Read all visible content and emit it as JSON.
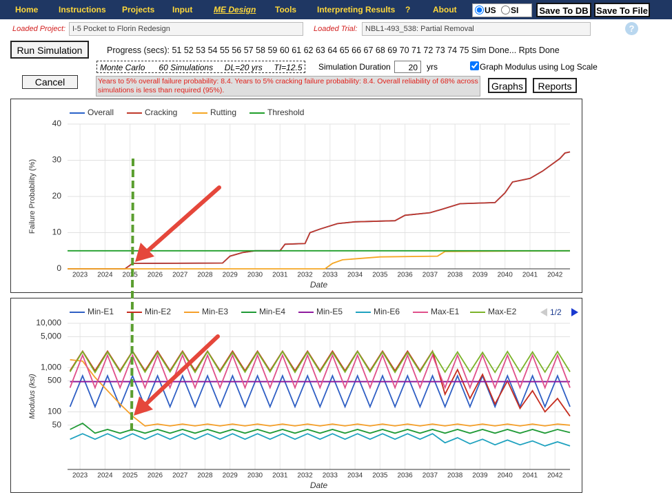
{
  "nav": {
    "items": [
      "Home",
      "Instructions",
      "Projects",
      "Input",
      "ME Design",
      "Tools",
      "Interpreting Results",
      "?",
      "About"
    ],
    "active": 4
  },
  "units": {
    "options": [
      "US",
      "SI"
    ],
    "selected": 0
  },
  "buttons": {
    "save_db": "Save To DB",
    "save_file": "Save To File",
    "run": "Run Simulation",
    "cancel": "Cancel",
    "graphs": "Graphs",
    "reports": "Reports"
  },
  "project": {
    "label": "Loaded Project:",
    "value": "I-5 Pocket to Florin Redesign"
  },
  "trial": {
    "label": "Loaded Trial:",
    "value": "NBL1-493_538: Partial Removal"
  },
  "help": "?",
  "progress": "Progress (secs): 51 52 53 54 55 56 57 58 59 60 61 62 63 64 65 66 67 68 69 70 71 72 73 74 75 Sim Done... Rpts Done",
  "monte_carlo": [
    "Monte Carlo",
    "60 Simulations",
    "DL=20 yrs",
    "TI=12.5"
  ],
  "duration": {
    "label": "Simulation Duration",
    "value": "20",
    "unit": "yrs"
  },
  "log_scale": {
    "label": "Graph Modulus using Log Scale",
    "checked": true
  },
  "message": "Years to 5% overall failure probability: 8.4. Years to 5% cracking failure probability: 8.4. Overall reliability of 68% across simulations is less than required (95%).",
  "chart_data": [
    {
      "type": "line",
      "ylabel": "Failure Probability (%)",
      "xlabel": "Date",
      "xlim": [
        2022.5,
        2042.6
      ],
      "xticks": [
        2023,
        2024,
        2025,
        2026,
        2027,
        2028,
        2029,
        2030,
        2031,
        2032,
        2033,
        2034,
        2035,
        2036,
        2037,
        2038,
        2039,
        2040,
        2041,
        2042
      ],
      "ylim": [
        0,
        40
      ],
      "yticks": [
        0,
        10,
        20,
        30,
        40
      ],
      "grid": true,
      "legend": "top-left",
      "series": [
        {
          "name": "Overall",
          "color": "#2a62c9",
          "x": [
            2022.5,
            2024.8,
            2025.1,
            2028.7,
            2029.0,
            2029.5,
            2030.0,
            2031.0,
            2031.2,
            2032.0,
            2032.2,
            2032.6,
            2033.3,
            2034.0,
            2035.6,
            2036.0,
            2037.0,
            2037.5,
            2038.2,
            2039.6,
            2040.0,
            2040.3,
            2041.0,
            2041.5,
            2042.2,
            2042.4,
            2042.6
          ],
          "values": [
            0,
            0,
            1.5,
            1.6,
            3.5,
            4.5,
            5,
            5,
            6.8,
            7,
            10,
            11,
            12.5,
            13,
            13.3,
            14.8,
            15.5,
            16.5,
            18,
            18.3,
            21,
            24,
            25,
            27,
            30.5,
            32,
            32.3
          ]
        },
        {
          "name": "Cracking",
          "color": "#c0392b",
          "x": [
            2022.5,
            2024.8,
            2025.1,
            2028.7,
            2029.0,
            2029.5,
            2030.0,
            2031.0,
            2031.2,
            2032.0,
            2032.2,
            2032.6,
            2033.3,
            2034.0,
            2035.6,
            2036.0,
            2037.0,
            2037.5,
            2038.2,
            2039.6,
            2040.0,
            2040.3,
            2041.0,
            2041.5,
            2042.2,
            2042.4,
            2042.6
          ],
          "values": [
            0,
            0,
            1.5,
            1.6,
            3.5,
            4.5,
            5,
            5,
            6.8,
            7,
            10,
            11,
            12.5,
            13,
            13.3,
            14.8,
            15.5,
            16.5,
            18,
            18.3,
            21,
            24,
            25,
            27,
            30.5,
            32,
            32.3
          ]
        },
        {
          "name": "Rutting",
          "color": "#f5a623",
          "x": [
            2022.5,
            2032.8,
            2033.1,
            2033.5,
            2035.0,
            2037.3,
            2037.6,
            2042.6
          ],
          "values": [
            0,
            0,
            1.5,
            2.5,
            3.3,
            3.5,
            4.8,
            5
          ]
        },
        {
          "name": "Threshold",
          "color": "#1f9e2a",
          "x": [
            2022.5,
            2042.6
          ],
          "values": [
            5,
            5
          ]
        }
      ]
    },
    {
      "type": "line",
      "ylabel": "Modulus (ksi)",
      "xlabel": "Date",
      "log_scale": true,
      "legend_page": "1/2",
      "xlim": [
        2022.5,
        2042.6
      ],
      "xticks": [
        2023,
        2024,
        2025,
        2026,
        2027,
        2028,
        2029,
        2030,
        2031,
        2032,
        2033,
        2034,
        2035,
        2036,
        2037,
        2038,
        2039,
        2040,
        2041,
        2042
      ],
      "ylim": [
        5,
        10000
      ],
      "yticks": [
        50,
        100,
        500,
        {
          "value": 1000,
          "label": "1,000"
        },
        {
          "value": 5000,
          "label": "5,000"
        },
        {
          "value": 10000,
          "label": "10,000"
        }
      ],
      "grid": true,
      "legend": "top-left",
      "x": [
        2022.6,
        2023.1,
        2023.6,
        2024.1,
        2024.6,
        2025.1,
        2025.6,
        2026.1,
        2026.6,
        2027.1,
        2027.6,
        2028.1,
        2028.6,
        2029.1,
        2029.6,
        2030.1,
        2030.6,
        2031.1,
        2031.6,
        2032.1,
        2032.6,
        2033.1,
        2033.6,
        2034.1,
        2034.6,
        2035.1,
        2035.6,
        2036.1,
        2036.6,
        2037.1,
        2037.6,
        2038.1,
        2038.6,
        2039.1,
        2039.6,
        2040.1,
        2040.6,
        2041.1,
        2041.6,
        2042.1,
        2042.6
      ],
      "series": [
        {
          "name": "Min-E1",
          "color": "#2f5fc4",
          "values": [
            130,
            650,
            130,
            650,
            130,
            650,
            130,
            650,
            130,
            650,
            130,
            650,
            130,
            650,
            130,
            650,
            130,
            650,
            130,
            650,
            130,
            650,
            130,
            650,
            130,
            650,
            130,
            650,
            130,
            650,
            130,
            650,
            130,
            650,
            130,
            650,
            130,
            650,
            130,
            650,
            130
          ]
        },
        {
          "name": "Min-E2",
          "color": "#c62d1f",
          "values": [
            850,
            2350,
            850,
            2350,
            850,
            2350,
            850,
            2350,
            850,
            2350,
            850,
            2350,
            850,
            2350,
            850,
            2350,
            850,
            2350,
            850,
            2350,
            850,
            2350,
            850,
            2350,
            850,
            2350,
            850,
            2350,
            850,
            2350,
            250,
            900,
            200,
            700,
            150,
            500,
            120,
            300,
            100,
            200,
            80
          ]
        },
        {
          "name": "Min-E3",
          "color": "#f5a02a",
          "values": [
            1500,
            1400,
            600,
            300,
            150,
            80,
            48,
            53,
            48,
            53,
            48,
            53,
            48,
            53,
            48,
            53,
            48,
            53,
            48,
            53,
            48,
            53,
            48,
            53,
            48,
            53,
            48,
            53,
            48,
            53,
            48,
            53,
            48,
            53,
            48,
            53,
            48,
            53,
            48,
            53,
            50
          ]
        },
        {
          "name": "Min-E4",
          "color": "#1f9a35",
          "values": [
            40,
            55,
            33,
            40,
            33,
            40,
            33,
            40,
            33,
            40,
            33,
            40,
            33,
            40,
            33,
            40,
            33,
            40,
            33,
            40,
            33,
            40,
            33,
            40,
            33,
            40,
            33,
            40,
            33,
            40,
            33,
            40,
            33,
            40,
            33,
            40,
            33,
            40,
            33,
            40,
            34
          ]
        },
        {
          "name": "Min-E5",
          "color": "#8e1a9e",
          "values": [
            480,
            480,
            480,
            480,
            480,
            480,
            480,
            480,
            480,
            480,
            480,
            480,
            480,
            480,
            480,
            480,
            480,
            480,
            480,
            480,
            480,
            480,
            480,
            480,
            480,
            480,
            480,
            480,
            480,
            480,
            480,
            480,
            480,
            480,
            480,
            480,
            480,
            480,
            480,
            480,
            480
          ]
        },
        {
          "name": "Min-E6",
          "color": "#1fa2bf",
          "values": [
            24,
            32,
            24,
            32,
            24,
            32,
            24,
            32,
            24,
            32,
            24,
            32,
            24,
            32,
            24,
            32,
            24,
            32,
            24,
            32,
            24,
            32,
            24,
            32,
            24,
            32,
            24,
            32,
            24,
            32,
            20,
            26,
            19,
            24,
            18,
            23,
            18,
            22,
            17,
            21,
            17
          ]
        },
        {
          "name": "Max-E1",
          "color": "#e0508a",
          "values": [
            350,
            1900,
            350,
            1900,
            350,
            1900,
            350,
            1900,
            350,
            1900,
            350,
            1900,
            350,
            1900,
            350,
            1900,
            350,
            1900,
            350,
            1900,
            350,
            1900,
            350,
            1900,
            350,
            1900,
            350,
            1900,
            350,
            1900,
            350,
            1900,
            350,
            1900,
            350,
            1900,
            350,
            1900,
            350,
            1900,
            350
          ]
        },
        {
          "name": "Max-E2",
          "color": "#7cb32a",
          "values": [
            800,
            2300,
            780,
            2250,
            800,
            2300,
            790,
            2200,
            800,
            2250,
            780,
            2300,
            800,
            2200,
            790,
            2250,
            800,
            2300,
            780,
            2250,
            800,
            2200,
            790,
            2300,
            800,
            2250,
            780,
            2200,
            800,
            2300,
            790,
            2250,
            800,
            2200,
            780,
            2300,
            800,
            2250,
            790,
            2300,
            800
          ]
        }
      ]
    }
  ]
}
